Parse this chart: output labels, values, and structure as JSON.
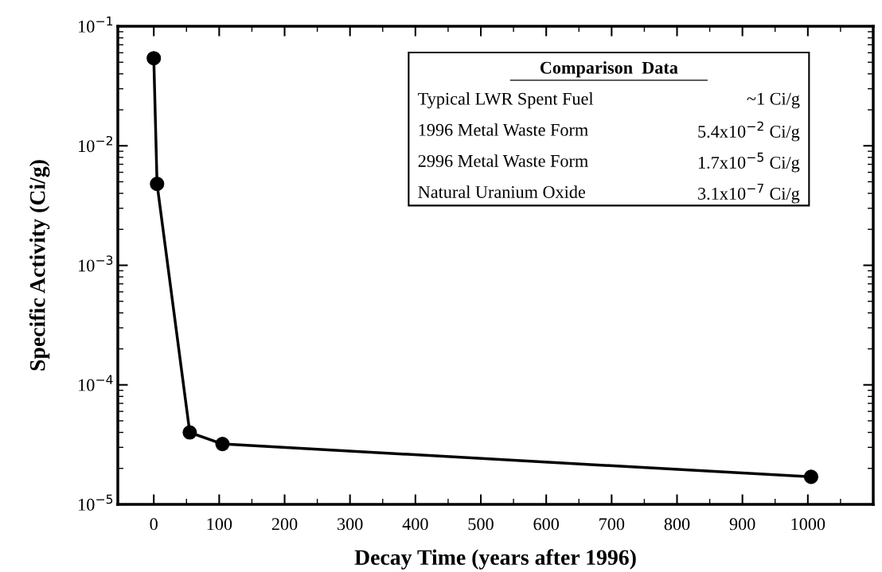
{
  "chart_data": {
    "type": "line",
    "xlabel": "Decay Time (years after 1996)",
    "ylabel": "Specific Activity (Ci/g)",
    "x": [
      0,
      5,
      55,
      105,
      1005
    ],
    "series": [
      {
        "color": "#000000",
        "values": [
          0.054,
          0.0048,
          4e-05,
          3.2e-05,
          1.7e-05
        ]
      }
    ],
    "log": "y",
    "marker": "circle",
    "line_style": "solid",
    "grid": false,
    "legend": false,
    "xlim": [
      -55,
      1100
    ],
    "xticks": [
      0,
      {
        "value": 50,
        "label": null
      },
      100,
      {
        "value": 150,
        "label": null
      },
      200,
      {
        "value": 250,
        "label": null
      },
      300,
      {
        "value": 350,
        "label": null
      },
      400,
      {
        "value": 450,
        "label": null
      },
      500,
      {
        "value": 550,
        "label": null
      },
      600,
      {
        "value": 650,
        "label": null
      },
      700,
      {
        "value": 750,
        "label": null
      },
      800,
      {
        "value": 850,
        "label": null
      },
      900,
      {
        "value": 950,
        "label": null
      },
      1000,
      {
        "value": 1050,
        "label": null
      }
    ],
    "ylim": [
      1e-05,
      0.1
    ],
    "yticks": [
      {
        "value": 1e-05,
        "label": "10$^{−5}$"
      },
      {
        "value": 0.0001,
        "label": "10$^{−4}$"
      },
      {
        "value": 0.001,
        "label": "10$^{−3}$"
      },
      {
        "value": 0.01,
        "label": "10$^{−2}$"
      },
      {
        "value": 0.1,
        "label": "10$^{−1}$"
      }
    ],
    "annotations": [
      "Comparison  Data",
      "Typical LWR Spent Fuel",
      "~1 Ci/g",
      "1996 Metal Waste Form",
      "5.4x10$^{−2}$ Ci/g",
      "2996 Metal Waste Form",
      "1.7x10$^{−5}$ Ci/g",
      "Natural Uranium Oxide",
      "3.1x10$^{−7}$ Ci/g"
    ]
  }
}
